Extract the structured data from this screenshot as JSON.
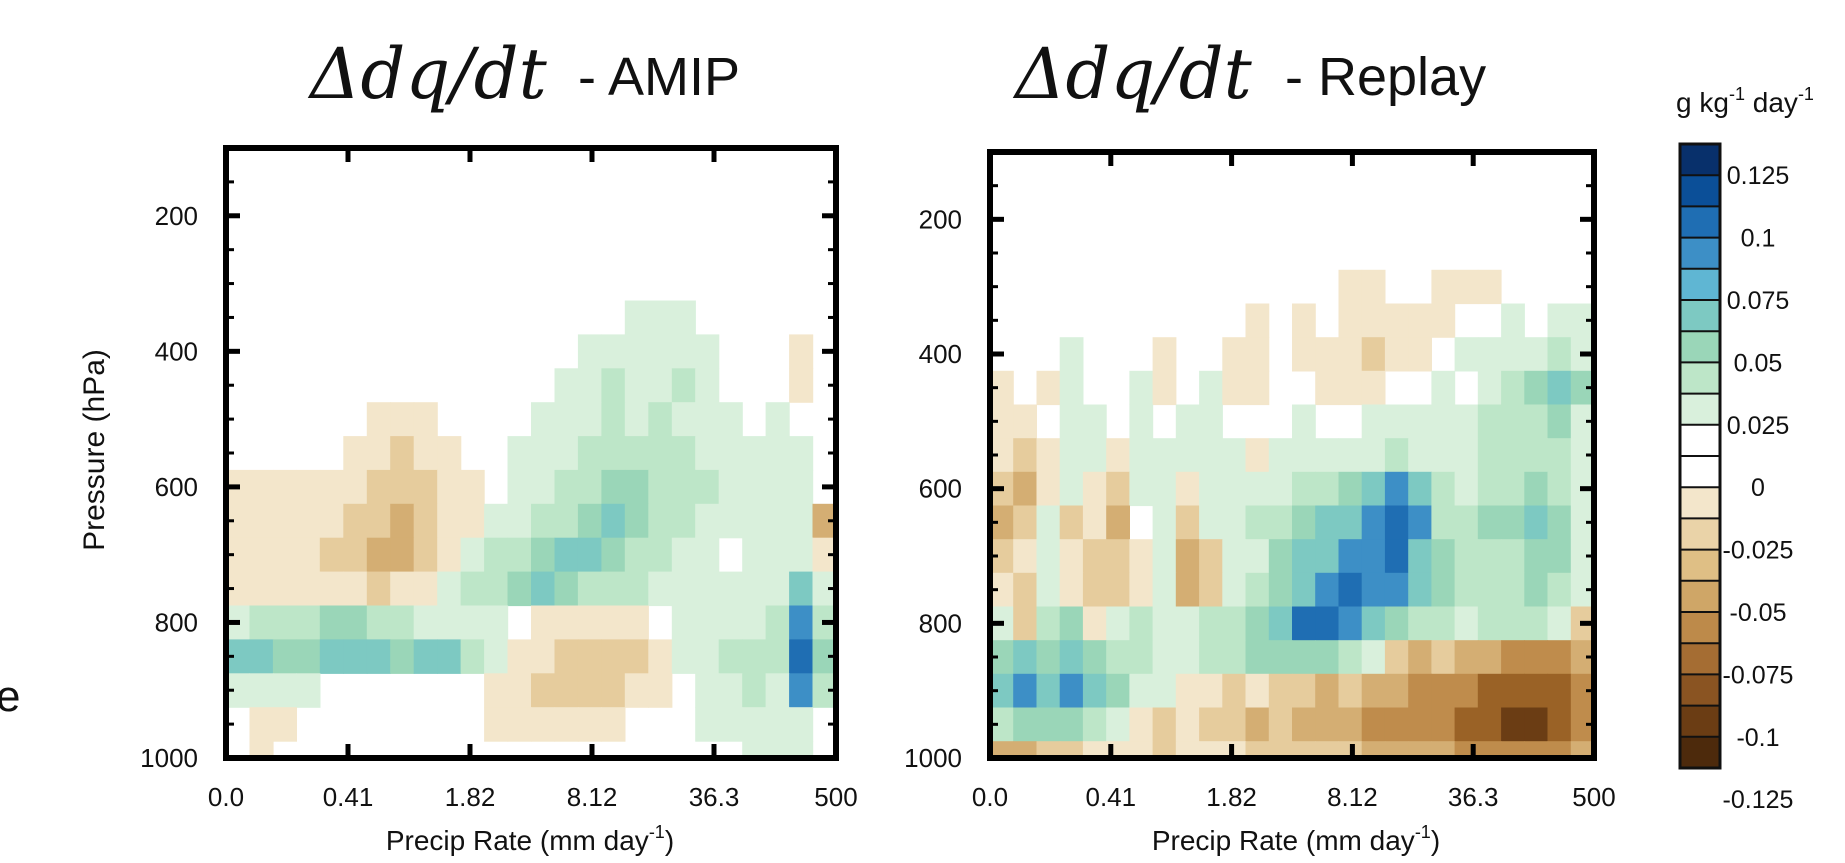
{
  "figure": {
    "stray_text": "e"
  },
  "colorbar": {
    "unit_label": {
      "base": "g kg",
      "exp1": "-1",
      "mid": " day",
      "exp2": "-1"
    },
    "tick_labels": [
      "0.125",
      "0.1",
      "0.075",
      "0.05",
      "0.025",
      "0",
      "-0.025",
      "-0.05",
      "-0.075",
      "-0.1",
      "-0.125"
    ],
    "colors_top_to_bottom": [
      "#08306b",
      "#0b4f98",
      "#1f6eb3",
      "#3d8fc6",
      "#5fb6d3",
      "#7dc9c2",
      "#9ad6b8",
      "#bde6c8",
      "#d9f0dc",
      "#ffffff",
      "#ffffff",
      "#f3e6cb",
      "#ead3a8",
      "#dfbf85",
      "#cfa667",
      "#bd8a4a",
      "#a56d33",
      "#8a5422",
      "#6b3d14",
      "#4d2a0c"
    ]
  },
  "chart_data": [
    {
      "type": "heatmap",
      "title_math": "Δdq/dt",
      "title_suffix": " - AMIP",
      "xlabel": {
        "base": "Precip Rate (mm day",
        "exp": "-1",
        "close": ")"
      },
      "ylabel": "Pressure (hPa)",
      "x_tick_labels": [
        "0.0",
        "0.41",
        "1.82",
        "8.12",
        "36.3",
        "500"
      ],
      "y_tick_labels": [
        "200",
        "400",
        "600",
        "800",
        "1000"
      ],
      "y_ticks": [
        200,
        400,
        600,
        800,
        1000
      ],
      "ylim": [
        100,
        1000
      ],
      "x_scale": "log",
      "grid": false,
      "note": "coarse reading of shaded anomaly field by precip-rate bin (columns 0-25) and pressure level",
      "rows": [
        {
          "p": 300,
          "levels": [
            0,
            0,
            0,
            0,
            0,
            0,
            0,
            0,
            0,
            0,
            0,
            0,
            0,
            0,
            0,
            0,
            0,
            0,
            0,
            0,
            0,
            0,
            0,
            0,
            0,
            0
          ]
        },
        {
          "p": 350,
          "levels": [
            0,
            0,
            0,
            0,
            0,
            0,
            0,
            0,
            0,
            0,
            0,
            0,
            0,
            0,
            0,
            0,
            0,
            1,
            1,
            1,
            0,
            0,
            0,
            0,
            0,
            0
          ]
        },
        {
          "p": 400,
          "levels": [
            0,
            0,
            0,
            0,
            0,
            0,
            0,
            0,
            0,
            0,
            0,
            0,
            0,
            0,
            0,
            1,
            1,
            1,
            1,
            1,
            1,
            0,
            0,
            0,
            -1,
            0
          ]
        },
        {
          "p": 450,
          "levels": [
            0,
            0,
            0,
            0,
            0,
            0,
            0,
            0,
            0,
            0,
            0,
            0,
            0,
            0,
            1,
            1,
            2,
            1,
            1,
            2,
            1,
            0,
            0,
            0,
            -1,
            0
          ]
        },
        {
          "p": 500,
          "levels": [
            0,
            0,
            0,
            0,
            0,
            0,
            -1,
            -1,
            -1,
            0,
            0,
            0,
            0,
            1,
            1,
            1,
            2,
            1,
            2,
            1,
            1,
            1,
            0,
            1,
            0,
            0
          ]
        },
        {
          "p": 550,
          "levels": [
            0,
            0,
            0,
            0,
            0,
            -1,
            -1,
            -2,
            -1,
            -1,
            0,
            0,
            1,
            1,
            1,
            2,
            2,
            2,
            2,
            2,
            1,
            1,
            1,
            1,
            1,
            0
          ]
        },
        {
          "p": 600,
          "levels": [
            -1,
            -1,
            -1,
            -1,
            -1,
            -1,
            -2,
            -2,
            -2,
            -1,
            -1,
            0,
            1,
            1,
            2,
            2,
            3,
            3,
            2,
            2,
            2,
            1,
            1,
            1,
            1,
            0
          ]
        },
        {
          "p": 650,
          "levels": [
            -1,
            -1,
            -1,
            -1,
            -1,
            -2,
            -2,
            -3,
            -2,
            -1,
            -1,
            1,
            1,
            2,
            2,
            3,
            4,
            3,
            2,
            2,
            1,
            1,
            1,
            1,
            1,
            -3
          ]
        },
        {
          "p": 700,
          "levels": [
            -1,
            -1,
            -1,
            -1,
            -2,
            -2,
            -3,
            -3,
            -2,
            -1,
            1,
            2,
            2,
            3,
            4,
            4,
            3,
            2,
            2,
            1,
            1,
            0,
            1,
            1,
            1,
            -1
          ]
        },
        {
          "p": 750,
          "levels": [
            -1,
            -1,
            -1,
            -1,
            -1,
            -1,
            -2,
            -1,
            -1,
            1,
            2,
            2,
            3,
            4,
            3,
            2,
            2,
            2,
            1,
            1,
            1,
            1,
            1,
            1,
            4,
            1
          ]
        },
        {
          "p": 800,
          "levels": [
            1,
            2,
            2,
            2,
            3,
            3,
            2,
            2,
            1,
            1,
            1,
            1,
            0,
            -1,
            -1,
            -1,
            -1,
            -1,
            0,
            1,
            1,
            1,
            1,
            2,
            5,
            2
          ]
        },
        {
          "p": 850,
          "levels": [
            4,
            4,
            3,
            3,
            4,
            4,
            4,
            3,
            4,
            4,
            2,
            1,
            -1,
            -1,
            -2,
            -2,
            -2,
            -2,
            -1,
            1,
            1,
            2,
            2,
            2,
            6,
            3
          ]
        },
        {
          "p": 900,
          "levels": [
            1,
            1,
            1,
            1,
            0,
            0,
            0,
            0,
            0,
            0,
            0,
            -1,
            -1,
            -2,
            -2,
            -2,
            -2,
            -1,
            -1,
            0,
            1,
            1,
            2,
            1,
            5,
            2
          ]
        },
        {
          "p": 950,
          "levels": [
            0,
            -1,
            -1,
            0,
            0,
            0,
            0,
            0,
            0,
            0,
            0,
            -1,
            -1,
            -1,
            -1,
            -1,
            -1,
            0,
            0,
            0,
            1,
            1,
            1,
            1,
            1,
            0
          ]
        },
        {
          "p": 1000,
          "levels": [
            0,
            -1,
            0,
            0,
            0,
            0,
            0,
            0,
            0,
            0,
            0,
            0,
            0,
            0,
            0,
            0,
            0,
            0,
            0,
            0,
            0,
            0,
            1,
            1,
            1,
            0
          ]
        }
      ]
    },
    {
      "type": "heatmap",
      "title_math": "Δdq/dt",
      "title_suffix": " - Replay",
      "xlabel": {
        "base": "Precip Rate (mm day",
        "exp": "-1",
        "close": ")"
      },
      "ylabel": "",
      "x_tick_labels": [
        "0.0",
        "0.41",
        "1.82",
        "8.12",
        "36.3",
        "500"
      ],
      "y_tick_labels": [
        "200",
        "400",
        "600",
        "800",
        "1000"
      ],
      "y_ticks": [
        200,
        400,
        600,
        800,
        1000
      ],
      "ylim": [
        100,
        1000
      ],
      "x_scale": "log",
      "grid": false,
      "note": "coarse reading of shaded anomaly field by precip-rate bin (columns 0-25) and pressure level",
      "rows": [
        {
          "p": 300,
          "levels": [
            0,
            0,
            0,
            0,
            0,
            0,
            0,
            0,
            0,
            0,
            0,
            0,
            0,
            0,
            0,
            -1,
            -1,
            0,
            0,
            -1,
            -1,
            -1,
            0,
            0,
            0,
            0
          ]
        },
        {
          "p": 350,
          "levels": [
            0,
            0,
            0,
            0,
            0,
            0,
            0,
            0,
            0,
            0,
            0,
            -1,
            0,
            -1,
            0,
            -1,
            -1,
            -1,
            -1,
            -1,
            0,
            0,
            1,
            0,
            1,
            1
          ]
        },
        {
          "p": 400,
          "levels": [
            0,
            0,
            0,
            1,
            0,
            0,
            0,
            -1,
            0,
            0,
            -1,
            -1,
            0,
            -1,
            -1,
            -1,
            -2,
            -1,
            -1,
            0,
            1,
            1,
            1,
            1,
            2,
            1
          ]
        },
        {
          "p": 450,
          "levels": [
            -1,
            0,
            -1,
            1,
            0,
            0,
            1,
            -1,
            0,
            1,
            -1,
            -1,
            0,
            0,
            -1,
            -1,
            -1,
            0,
            0,
            1,
            0,
            1,
            2,
            3,
            4,
            3
          ]
        },
        {
          "p": 500,
          "levels": [
            -1,
            -1,
            0,
            1,
            1,
            0,
            1,
            0,
            1,
            1,
            0,
            0,
            0,
            1,
            0,
            0,
            1,
            1,
            1,
            1,
            1,
            2,
            2,
            2,
            3,
            1
          ]
        },
        {
          "p": 550,
          "levels": [
            -1,
            -2,
            -1,
            1,
            1,
            -1,
            1,
            1,
            1,
            1,
            1,
            -1,
            1,
            1,
            1,
            1,
            1,
            2,
            1,
            1,
            1,
            2,
            2,
            2,
            2,
            1
          ]
        },
        {
          "p": 600,
          "levels": [
            -2,
            -3,
            -1,
            1,
            -1,
            -2,
            1,
            1,
            -1,
            1,
            1,
            1,
            1,
            2,
            2,
            3,
            4,
            5,
            4,
            2,
            1,
            2,
            2,
            3,
            2,
            1
          ]
        },
        {
          "p": 650,
          "levels": [
            -3,
            -2,
            1,
            -2,
            -1,
            -3,
            0,
            1,
            -2,
            1,
            1,
            2,
            2,
            3,
            4,
            4,
            5,
            6,
            5,
            2,
            2,
            3,
            3,
            4,
            3,
            1
          ]
        },
        {
          "p": 700,
          "levels": [
            -2,
            -1,
            1,
            -1,
            -2,
            -2,
            -1,
            1,
            -3,
            -2,
            1,
            1,
            3,
            4,
            4,
            5,
            5,
            6,
            4,
            3,
            2,
            2,
            2,
            3,
            3,
            1
          ]
        },
        {
          "p": 750,
          "levels": [
            -1,
            -2,
            1,
            -1,
            -2,
            -2,
            -1,
            1,
            -3,
            -2,
            1,
            2,
            3,
            4,
            5,
            6,
            5,
            5,
            4,
            3,
            2,
            2,
            2,
            3,
            2,
            1
          ]
        },
        {
          "p": 800,
          "levels": [
            1,
            -2,
            2,
            3,
            -1,
            1,
            2,
            1,
            1,
            2,
            2,
            3,
            4,
            6,
            6,
            5,
            4,
            3,
            2,
            2,
            1,
            2,
            2,
            2,
            1,
            -2
          ]
        },
        {
          "p": 850,
          "levels": [
            3,
            4,
            3,
            4,
            3,
            2,
            2,
            1,
            1,
            2,
            2,
            3,
            3,
            3,
            3,
            2,
            1,
            -2,
            -3,
            -2,
            -3,
            -3,
            -4,
            -4,
            -4,
            -3
          ]
        },
        {
          "p": 900,
          "levels": [
            4,
            5,
            4,
            5,
            4,
            3,
            1,
            1,
            -1,
            -1,
            -2,
            -1,
            -2,
            -2,
            -3,
            -2,
            -3,
            -3,
            -4,
            -4,
            -4,
            -5,
            -5,
            -5,
            -5,
            -4
          ]
        },
        {
          "p": 950,
          "levels": [
            2,
            3,
            3,
            3,
            2,
            1,
            -1,
            -2,
            -1,
            -2,
            -2,
            -3,
            -2,
            -3,
            -3,
            -3,
            -4,
            -4,
            -4,
            -4,
            -5,
            -5,
            -6,
            -6,
            -5,
            -4
          ]
        },
        {
          "p": 1000,
          "levels": [
            -3,
            -3,
            -2,
            -2,
            -1,
            -1,
            -1,
            -2,
            -1,
            -1,
            -1,
            -2,
            -2,
            -2,
            -2,
            -2,
            -3,
            -3,
            -3,
            -3,
            -4,
            -4,
            -4,
            -4,
            -4,
            -3
          ]
        }
      ]
    }
  ]
}
